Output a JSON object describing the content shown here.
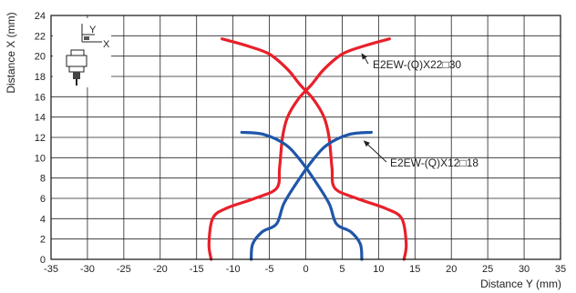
{
  "chart_data": {
    "type": "line",
    "xlabel": "Distance Y (mm)",
    "ylabel": "Distance X (mm)",
    "xlim": [
      -35,
      35
    ],
    "ylim": [
      0,
      24
    ],
    "xticks": [
      -35,
      -30,
      -25,
      -20,
      -15,
      -10,
      -5,
      0,
      5,
      10,
      15,
      20,
      25,
      30,
      35
    ],
    "yticks": [
      0,
      2,
      4,
      6,
      8,
      10,
      12,
      14,
      16,
      18,
      20,
      22,
      24
    ],
    "grid": true,
    "legend": "none",
    "series": [
      {
        "name": "E2EW-(Q)X22□30",
        "color": "#e8202a",
        "branches": [
          {
            "x": [
              -13.0,
              -13.3,
              -12.8,
              -11.0,
              -7.0,
              -4.0,
              -3.6,
              -3.2,
              -2.5,
              -1.0,
              0.8,
              2.5,
              5.0,
              8.0,
              11.5
            ],
            "y": [
              0,
              1.5,
              4.0,
              5.0,
              6.0,
              7.0,
              9.0,
              12.0,
              14.0,
              15.8,
              17.2,
              18.7,
              20.2,
              21.0,
              21.7
            ]
          },
          {
            "x": [
              13.5,
              13.8,
              13.2,
              11.0,
              7.0,
              4.0,
              3.6,
              3.2,
              2.5,
              1.0,
              -0.8,
              -2.5,
              -5.0,
              -8.0,
              -11.5
            ],
            "y": [
              0,
              1.5,
              4.0,
              5.0,
              6.0,
              7.0,
              9.0,
              12.0,
              14.0,
              15.8,
              17.2,
              18.7,
              20.2,
              21.0,
              21.7
            ]
          }
        ]
      },
      {
        "name": "E2EW-(Q)X12□18",
        "color": "#1f56a8",
        "branches": [
          {
            "x": [
              -7.5,
              -7.3,
              -6.0,
              -4.0,
              -3.0,
              -1.0,
              1.0,
              3.0,
              6.0,
              9.0
            ],
            "y": [
              0,
              1.5,
              2.7,
              3.5,
              5.5,
              7.8,
              9.8,
              11.3,
              12.3,
              12.5
            ]
          },
          {
            "x": [
              7.7,
              7.5,
              6.2,
              4.2,
              3.2,
              1.2,
              -0.8,
              -2.8,
              -5.8,
              -8.8
            ],
            "y": [
              0,
              1.5,
              2.7,
              3.5,
              5.5,
              7.8,
              9.8,
              11.3,
              12.3,
              12.5
            ]
          }
        ]
      }
    ],
    "annotations": [
      {
        "text": "E2EW-(Q)X22□30",
        "points_to_x": 7.5,
        "points_to_y": 20.4
      },
      {
        "text": "E2EW-(Q)X12□18",
        "points_to_x": 7.8,
        "points_to_y": 11.8
      }
    ],
    "inset": {
      "axis_y_label": "Y",
      "axis_x_label": "X"
    }
  }
}
